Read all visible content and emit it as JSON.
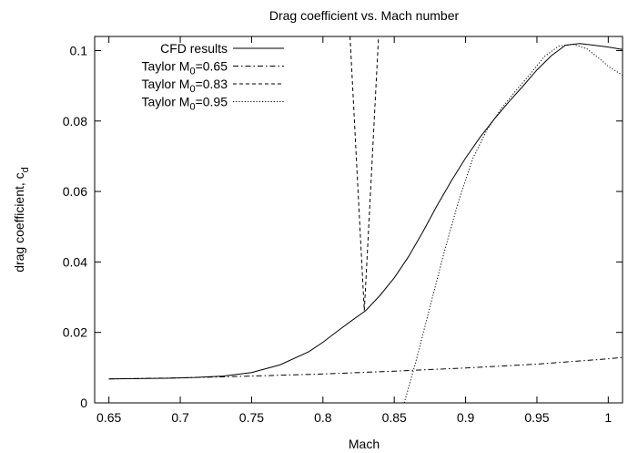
{
  "chart_data": {
    "type": "line",
    "title": "Drag coefficient vs. Mach number",
    "xlabel": "Mach",
    "ylabel": "drag coefficient, c",
    "ylabel_subscript": "d",
    "xlim": [
      0.64,
      1.01
    ],
    "ylim": [
      0,
      0.104
    ],
    "xticks": [
      0.65,
      0.7,
      0.75,
      0.8,
      0.85,
      0.9,
      0.95,
      1
    ],
    "xtick_labels": [
      "0.65",
      "0.7",
      "0.75",
      "0.8",
      "0.85",
      "0.9",
      "0.95",
      "1"
    ],
    "yticks": [
      0,
      0.02,
      0.04,
      0.06,
      0.08,
      0.1
    ],
    "ytick_labels": [
      "0",
      "0.02",
      "0.04",
      "0.06",
      "0.08",
      "0.1"
    ],
    "grid": false,
    "legend_position": "top-left",
    "series": [
      {
        "name": "CFD results",
        "name_main": "CFD results",
        "name_sub": "",
        "name_tail": "",
        "style": "solid",
        "color": "#000000",
        "x": [
          0.65,
          0.67,
          0.69,
          0.71,
          0.73,
          0.75,
          0.77,
          0.79,
          0.8,
          0.81,
          0.82,
          0.83,
          0.84,
          0.85,
          0.86,
          0.87,
          0.88,
          0.89,
          0.9,
          0.91,
          0.92,
          0.93,
          0.94,
          0.95,
          0.96,
          0.97,
          0.98,
          0.99,
          1.0,
          1.01
        ],
        "y": [
          0.0068,
          0.0069,
          0.007,
          0.0072,
          0.0076,
          0.0086,
          0.0108,
          0.0145,
          0.0172,
          0.0203,
          0.0233,
          0.0262,
          0.0305,
          0.0355,
          0.0415,
          0.0485,
          0.056,
          0.063,
          0.0695,
          0.0753,
          0.0805,
          0.0853,
          0.0898,
          0.0945,
          0.0985,
          0.1015,
          0.102,
          0.1015,
          0.101,
          0.1003
        ]
      },
      {
        "name": "Taylor M0=0.65",
        "name_main": "Taylor M",
        "name_sub": "0",
        "name_tail": "=0.65",
        "style": "dashdot",
        "color": "#000000",
        "x": [
          0.65,
          0.7,
          0.75,
          0.8,
          0.85,
          0.9,
          0.95,
          1.0,
          1.01
        ],
        "y": [
          0.0068,
          0.0071,
          0.0076,
          0.0082,
          0.009,
          0.0099,
          0.011,
          0.0125,
          0.0129
        ]
      },
      {
        "name": "Taylor M0=0.83",
        "name_main": "Taylor M",
        "name_sub": "0",
        "name_tail": "=0.83",
        "style": "dashed",
        "color": "#000000",
        "x": [
          0.819,
          0.8215,
          0.824,
          0.8265,
          0.829,
          0.8315,
          0.834,
          0.8365,
          0.839
        ],
        "y": [
          0.104,
          0.0846,
          0.0649,
          0.0454,
          0.0262,
          0.0454,
          0.0649,
          0.0846,
          0.104
        ]
      },
      {
        "name": "Taylor M0=0.95",
        "name_main": "Taylor M",
        "name_sub": "0",
        "name_tail": "=0.95",
        "style": "dotted",
        "color": "#000000",
        "x": [
          0.857,
          0.865,
          0.875,
          0.885,
          0.895,
          0.905,
          0.915,
          0.925,
          0.935,
          0.945,
          0.955,
          0.965,
          0.975,
          0.985,
          0.995,
          1.0,
          1.01
        ],
        "y": [
          0.0,
          0.0115,
          0.0272,
          0.0428,
          0.0572,
          0.0693,
          0.0775,
          0.0835,
          0.0885,
          0.0932,
          0.0982,
          0.1012,
          0.1018,
          0.1005,
          0.0973,
          0.0955,
          0.093
        ]
      }
    ]
  }
}
